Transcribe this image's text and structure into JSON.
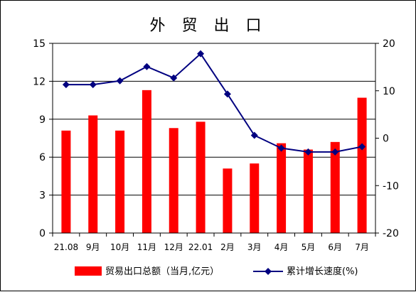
{
  "chart_data": {
    "type": "bar",
    "title": "外 贸 出 口",
    "categories": [
      "21.08",
      "9月",
      "10月",
      "11月",
      "12月",
      "22.01",
      "2月",
      "3月",
      "4月",
      "5月",
      "6月",
      "7月"
    ],
    "series": [
      {
        "name": "贸易出口总额（当月,亿元）",
        "type": "bar",
        "axis": "left",
        "color": "#ff0000",
        "values": [
          8.1,
          9.3,
          8.1,
          11.3,
          8.3,
          8.8,
          5.1,
          5.5,
          7.1,
          6.6,
          7.2,
          10.7
        ]
      },
      {
        "name": "累计增长速度(%)",
        "type": "line",
        "axis": "right",
        "color": "#000080",
        "values": [
          11.3,
          11.3,
          12.1,
          15.1,
          12.7,
          17.8,
          9.3,
          0.6,
          -2.1,
          -2.9,
          -2.9,
          -1.8
        ]
      }
    ],
    "left_axis": {
      "ylim": [
        0,
        15
      ],
      "ticks": [
        "0",
        "3",
        "6",
        "9",
        "12",
        "15"
      ]
    },
    "right_axis": {
      "ylim": [
        -20,
        20
      ],
      "ticks": [
        "-20",
        "-10",
        "0",
        "10",
        "20"
      ]
    },
    "grid": true,
    "legend": "bottom"
  }
}
